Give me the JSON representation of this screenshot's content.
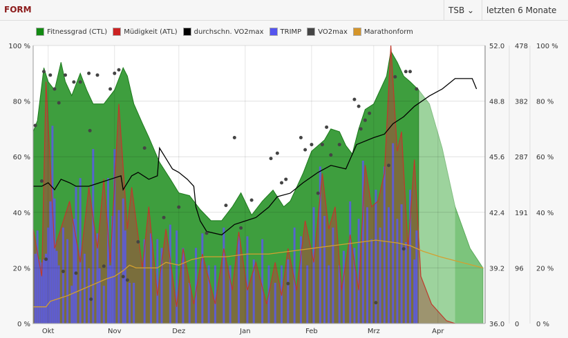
{
  "header": {
    "title": "FORM",
    "metric_select": "TSB",
    "range_select": "letzten 6 Monate"
  },
  "colors": {
    "ctl": "#3e9e3e",
    "ctl_forecast": "#7cc47c",
    "atl_fill": "#7d6b3c",
    "atl_line": "#c0392b",
    "avg_vo2": "#000000",
    "trimp": "#5a5ae6",
    "vo2": "#444444",
    "marathon": "#d4a030"
  },
  "chart_data": {
    "type": "area",
    "legend": [
      {
        "name": "Fitnessgrad (CTL)",
        "color": "#128a12"
      },
      {
        "name": "Müdigkeit (ATL)",
        "color": "#cc2222"
      },
      {
        "name": "durchschn. VO2max",
        "color": "#000000"
      },
      {
        "name": "TRIMP",
        "color": "#5555ee"
      },
      {
        "name": "VO2max",
        "color": "#444444"
      },
      {
        "name": "Marathonform",
        "color": "#d4952a"
      }
    ],
    "legend_position": "top",
    "x_unit": "days",
    "xlim": [
      0,
      211
    ],
    "x_ticks": [
      {
        "day": 7,
        "label": "Okt"
      },
      {
        "day": 38,
        "label": "Nov"
      },
      {
        "day": 68,
        "label": "Dez"
      },
      {
        "day": 99,
        "label": "Jan"
      },
      {
        "day": 130,
        "label": "Feb"
      },
      {
        "day": 159,
        "label": "Mrz"
      },
      {
        "day": 189,
        "label": "Apr"
      }
    ],
    "y_left": {
      "ylim": [
        0,
        100
      ],
      "ticks": [
        "0 %",
        "20 %",
        "40 %",
        "60 %",
        "80 %",
        "100 %"
      ]
    },
    "y_vo2": {
      "ylim": [
        36,
        52
      ],
      "ticks": [
        "36.0",
        "39.2",
        "42.4",
        "45.6",
        "48.8",
        "52.0"
      ]
    },
    "y_trimp": {
      "ylim": [
        0,
        478
      ],
      "ticks": [
        "0",
        "96",
        "191",
        "287",
        "382",
        "478"
      ]
    },
    "y_right_pct": {
      "ticks": [
        "0 %",
        "20 %",
        "40 %",
        "60 %",
        "80 %",
        "100 %"
      ]
    },
    "ctl": [
      [
        0,
        69
      ],
      [
        2,
        73
      ],
      [
        5,
        92
      ],
      [
        7,
        87
      ],
      [
        10,
        84
      ],
      [
        13,
        94
      ],
      [
        15,
        87
      ],
      [
        18,
        82
      ],
      [
        22,
        90
      ],
      [
        25,
        84
      ],
      [
        28,
        79
      ],
      [
        33,
        79
      ],
      [
        38,
        84
      ],
      [
        42,
        92
      ],
      [
        44,
        89
      ],
      [
        47,
        79
      ],
      [
        51,
        72
      ],
      [
        54,
        67
      ],
      [
        59,
        58
      ],
      [
        64,
        52
      ],
      [
        68,
        47
      ],
      [
        73,
        46
      ],
      [
        78,
        41
      ],
      [
        83,
        37
      ],
      [
        88,
        37
      ],
      [
        93,
        42
      ],
      [
        97,
        47
      ],
      [
        102,
        39
      ],
      [
        107,
        44
      ],
      [
        112,
        48
      ],
      [
        117,
        42
      ],
      [
        120,
        44
      ],
      [
        123,
        49
      ],
      [
        126,
        54
      ],
      [
        130,
        62
      ],
      [
        133,
        64
      ],
      [
        136,
        66
      ],
      [
        139,
        70
      ],
      [
        143,
        69
      ],
      [
        146,
        64
      ],
      [
        149,
        61
      ],
      [
        152,
        70
      ],
      [
        155,
        77
      ],
      [
        159,
        79
      ],
      [
        162,
        84
      ],
      [
        165,
        89
      ],
      [
        167,
        98
      ],
      [
        170,
        94
      ],
      [
        173,
        89
      ],
      [
        176,
        87
      ],
      [
        180,
        84
      ]
    ],
    "ctl_forecast": [
      [
        180,
        84
      ],
      [
        185,
        79
      ],
      [
        191,
        63
      ],
      [
        197,
        42
      ],
      [
        204,
        27
      ],
      [
        210,
        20
      ]
    ],
    "atl": [
      [
        0,
        34
      ],
      [
        4,
        17
      ],
      [
        6,
        87
      ],
      [
        10,
        27
      ],
      [
        17,
        44
      ],
      [
        22,
        22
      ],
      [
        26,
        49
      ],
      [
        30,
        27
      ],
      [
        33,
        52
      ],
      [
        36,
        22
      ],
      [
        40,
        79
      ],
      [
        44,
        34
      ],
      [
        46,
        49
      ],
      [
        51,
        20
      ],
      [
        54,
        42
      ],
      [
        58,
        10
      ],
      [
        62,
        34
      ],
      [
        67,
        6
      ],
      [
        70,
        27
      ],
      [
        75,
        7
      ],
      [
        79,
        25
      ],
      [
        85,
        7
      ],
      [
        89,
        27
      ],
      [
        93,
        12
      ],
      [
        96,
        33
      ],
      [
        100,
        12
      ],
      [
        104,
        22
      ],
      [
        109,
        7
      ],
      [
        113,
        22
      ],
      [
        116,
        10
      ],
      [
        119,
        27
      ],
      [
        123,
        12
      ],
      [
        127,
        37
      ],
      [
        131,
        22
      ],
      [
        135,
        54
      ],
      [
        138,
        34
      ],
      [
        141,
        42
      ],
      [
        144,
        12
      ],
      [
        148,
        32
      ],
      [
        152,
        12
      ],
      [
        155,
        57
      ],
      [
        158,
        42
      ],
      [
        161,
        44
      ],
      [
        164,
        54
      ],
      [
        167,
        100
      ],
      [
        170,
        62
      ],
      [
        172,
        69
      ],
      [
        175,
        27
      ],
      [
        178,
        59
      ],
      [
        181,
        17
      ],
      [
        186,
        7
      ],
      [
        193,
        1
      ],
      [
        197,
        0
      ]
    ],
    "avg_vo2max": [
      [
        0,
        43.9
      ],
      [
        4,
        43.9
      ],
      [
        7,
        44.1
      ],
      [
        10,
        43.7
      ],
      [
        13,
        44.3
      ],
      [
        17,
        44.1
      ],
      [
        20,
        43.9
      ],
      [
        26,
        43.9
      ],
      [
        31,
        44.1
      ],
      [
        36,
        44.3
      ],
      [
        41,
        44.5
      ],
      [
        42,
        43.7
      ],
      [
        46,
        44.5
      ],
      [
        49,
        44.7
      ],
      [
        54,
        44.3
      ],
      [
        58,
        44.5
      ],
      [
        59,
        46.1
      ],
      [
        62,
        45.5
      ],
      [
        65,
        44.9
      ],
      [
        68,
        44.7
      ],
      [
        72,
        44.3
      ],
      [
        75,
        43.9
      ],
      [
        76,
        42.7
      ],
      [
        78,
        41.9
      ],
      [
        81,
        41.3
      ],
      [
        88,
        41.1
      ],
      [
        94,
        41.7
      ],
      [
        99,
        41.9
      ],
      [
        104,
        42.1
      ],
      [
        110,
        42.7
      ],
      [
        114,
        43.3
      ],
      [
        120,
        43.5
      ],
      [
        126,
        44.1
      ],
      [
        133,
        44.7
      ],
      [
        139,
        45.1
      ],
      [
        146,
        44.9
      ],
      [
        151,
        46.3
      ],
      [
        159,
        46.7
      ],
      [
        164,
        46.9
      ],
      [
        168,
        47.5
      ],
      [
        173,
        47.9
      ],
      [
        178,
        48.5
      ],
      [
        185,
        49.1
      ],
      [
        191,
        49.5
      ],
      [
        197,
        50.1
      ],
      [
        205,
        50.1
      ],
      [
        207,
        49.5
      ]
    ],
    "marathonform": [
      [
        0,
        6
      ],
      [
        6,
        6
      ],
      [
        8,
        8
      ],
      [
        12,
        9
      ],
      [
        16,
        10
      ],
      [
        22,
        12
      ],
      [
        28,
        14
      ],
      [
        34,
        16
      ],
      [
        38,
        17
      ],
      [
        42,
        19
      ],
      [
        45,
        21
      ],
      [
        48,
        20
      ],
      [
        58,
        20
      ],
      [
        62,
        22
      ],
      [
        68,
        21
      ],
      [
        74,
        23
      ],
      [
        80,
        24
      ],
      [
        90,
        24
      ],
      [
        100,
        25
      ],
      [
        110,
        25
      ],
      [
        120,
        26
      ],
      [
        130,
        27
      ],
      [
        140,
        28
      ],
      [
        150,
        29
      ],
      [
        160,
        30
      ],
      [
        170,
        29
      ],
      [
        176,
        28
      ],
      [
        182,
        26
      ],
      [
        190,
        24
      ],
      [
        200,
        22
      ],
      [
        210,
        20
      ]
    ],
    "trimp": [
      [
        1,
        120
      ],
      [
        2,
        160
      ],
      [
        3,
        110
      ],
      [
        4,
        105
      ],
      [
        5,
        110
      ],
      [
        6,
        120
      ],
      [
        7,
        165
      ],
      [
        8,
        210
      ],
      [
        9,
        340
      ],
      [
        10,
        215
      ],
      [
        11,
        125
      ],
      [
        12,
        100
      ],
      [
        14,
        165
      ],
      [
        16,
        145
      ],
      [
        18,
        65
      ],
      [
        19,
        180
      ],
      [
        20,
        235
      ],
      [
        22,
        250
      ],
      [
        24,
        120
      ],
      [
        26,
        95
      ],
      [
        28,
        300
      ],
      [
        30,
        155
      ],
      [
        31,
        95
      ],
      [
        33,
        65
      ],
      [
        35,
        250
      ],
      [
        36,
        100
      ],
      [
        37,
        185
      ],
      [
        38,
        300
      ],
      [
        40,
        195
      ],
      [
        42,
        215
      ],
      [
        43,
        160
      ],
      [
        45,
        70
      ],
      [
        47,
        70
      ],
      [
        52,
        145
      ],
      [
        55,
        155
      ],
      [
        58,
        145
      ],
      [
        60,
        130
      ],
      [
        64,
        170
      ],
      [
        67,
        160
      ],
      [
        70,
        130
      ],
      [
        73,
        70
      ],
      [
        76,
        130
      ],
      [
        79,
        155
      ],
      [
        82,
        100
      ],
      [
        85,
        100
      ],
      [
        89,
        165
      ],
      [
        92,
        100
      ],
      [
        96,
        150
      ],
      [
        100,
        150
      ],
      [
        103,
        110
      ],
      [
        107,
        145
      ],
      [
        110,
        100
      ],
      [
        113,
        70
      ],
      [
        116,
        100
      ],
      [
        119,
        110
      ],
      [
        122,
        165
      ],
      [
        125,
        150
      ],
      [
        128,
        100
      ],
      [
        131,
        200
      ],
      [
        134,
        270
      ],
      [
        136,
        185
      ],
      [
        138,
        100
      ],
      [
        140,
        165
      ],
      [
        143,
        100
      ],
      [
        145,
        125
      ],
      [
        148,
        210
      ],
      [
        150,
        130
      ],
      [
        152,
        180
      ],
      [
        154,
        280
      ],
      [
        156,
        200
      ],
      [
        158,
        145
      ],
      [
        160,
        230
      ],
      [
        162,
        165
      ],
      [
        164,
        270
      ],
      [
        166,
        200
      ],
      [
        168,
        310
      ],
      [
        170,
        180
      ],
      [
        172,
        205
      ],
      [
        174,
        140
      ],
      [
        176,
        230
      ],
      [
        178,
        110
      ],
      [
        179,
        160
      ]
    ],
    "vo2max": [
      [
        1,
        47.4
      ],
      [
        4,
        44.2
      ],
      [
        5,
        50.5
      ],
      [
        6,
        39.7
      ],
      [
        8,
        50.3
      ],
      [
        10,
        49.5
      ],
      [
        12,
        48.7
      ],
      [
        14,
        39.0
      ],
      [
        15,
        50.3
      ],
      [
        19,
        49.9
      ],
      [
        20,
        38.9
      ],
      [
        22,
        49.9
      ],
      [
        26,
        50.4
      ],
      [
        26.5,
        47.1
      ],
      [
        27,
        37.4
      ],
      [
        30,
        50.3
      ],
      [
        33,
        39.3
      ],
      [
        36,
        49.5
      ],
      [
        38,
        50.4
      ],
      [
        40,
        50.6
      ],
      [
        42,
        38.7
      ],
      [
        44,
        38.5
      ],
      [
        49,
        40.7
      ],
      [
        52,
        46.1
      ],
      [
        61,
        42.1
      ],
      [
        68,
        42.7
      ],
      [
        81,
        41.2
      ],
      [
        90,
        42.8
      ],
      [
        94,
        46.7
      ],
      [
        97,
        41.5
      ],
      [
        102,
        43.1
      ],
      [
        111,
        45.5
      ],
      [
        114,
        45.8
      ],
      [
        116,
        44.1
      ],
      [
        118,
        44.3
      ],
      [
        119,
        38.3
      ],
      [
        125,
        46.7
      ],
      [
        127,
        46.0
      ],
      [
        130,
        46.3
      ],
      [
        133,
        43.5
      ],
      [
        135,
        46.3
      ],
      [
        137,
        47.3
      ],
      [
        139,
        45.7
      ],
      [
        143,
        46.3
      ],
      [
        150,
        48.9
      ],
      [
        152,
        48.5
      ],
      [
        153,
        47.2
      ],
      [
        155,
        47.7
      ],
      [
        157,
        48.1
      ],
      [
        160,
        37.2
      ],
      [
        166,
        45.1
      ],
      [
        169,
        50.2
      ],
      [
        173,
        40.3
      ],
      [
        174,
        50.5
      ],
      [
        176,
        50.5
      ],
      [
        179,
        49.5
      ]
    ]
  }
}
